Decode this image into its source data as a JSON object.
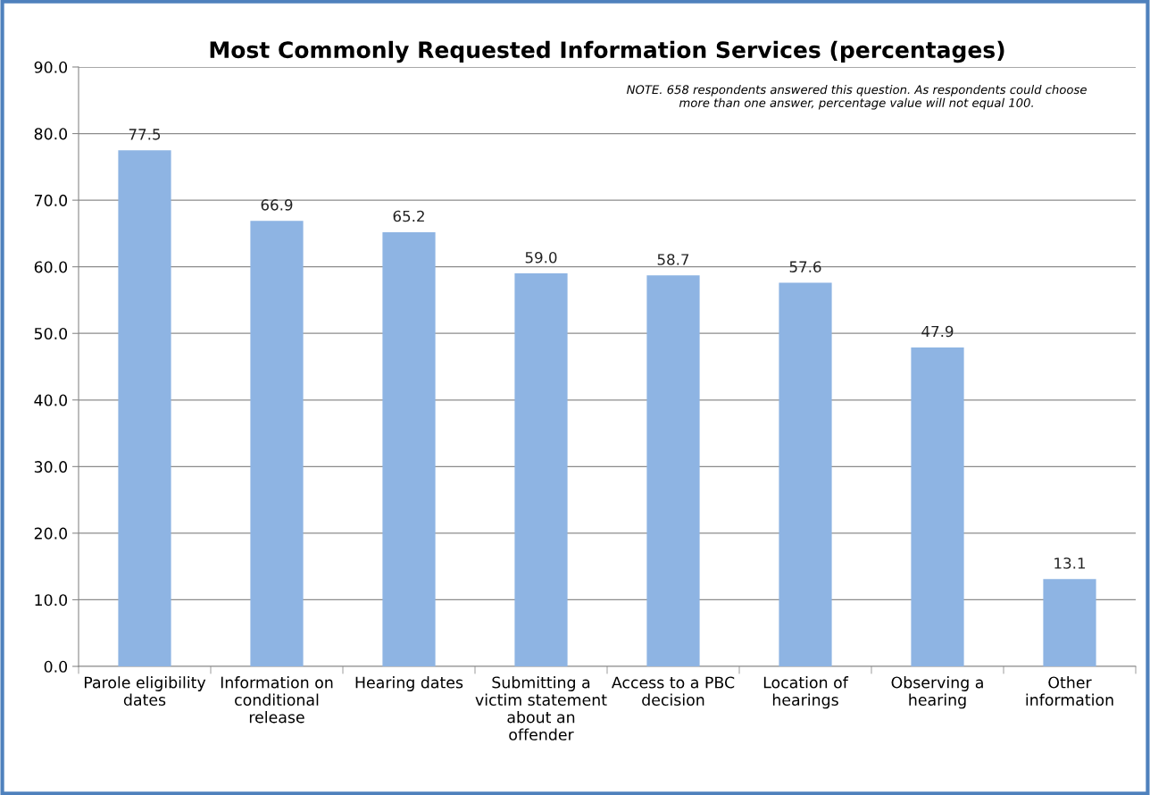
{
  "chart_data": {
    "type": "bar",
    "title": "Most Commonly Requested Information Services (percentages)",
    "categories": [
      "Parole eligibility\ndates",
      "Information on\nconditional\nrelease",
      "Hearing dates",
      "Submitting a\nvictim statement\nabout an\noffender",
      "Access to a PBC\ndecision",
      "Location of\nhearings",
      "Observing a\nhearing",
      "Other\ninformation"
    ],
    "values": [
      77.5,
      66.9,
      65.2,
      59.0,
      58.7,
      57.6,
      47.9,
      13.1
    ],
    "value_labels": [
      "77.5",
      "66.9",
      "65.2",
      "59.0",
      "58.7",
      "57.6",
      "47.9",
      "13.1"
    ],
    "color": "#8eb4e3",
    "ylim": [
      0,
      90
    ],
    "yticks": [
      {
        "value": 0,
        "label": "0.0"
      },
      {
        "value": 10,
        "label": "10.0"
      },
      {
        "value": 20,
        "label": "20.0"
      },
      {
        "value": 30,
        "label": "30.0"
      },
      {
        "value": 40,
        "label": "40.0"
      },
      {
        "value": 50,
        "label": "50.0"
      },
      {
        "value": 60,
        "label": "60.0"
      },
      {
        "value": 70,
        "label": "70.0"
      },
      {
        "value": 80,
        "label": "80.0"
      },
      {
        "value": 90,
        "label": "90.0"
      }
    ],
    "grid": "y",
    "annotations": [
      "NOTE. 658 respondents answered this question. As respondents could choose\nmore than one answer, percentage value will not equal 100."
    ]
  }
}
